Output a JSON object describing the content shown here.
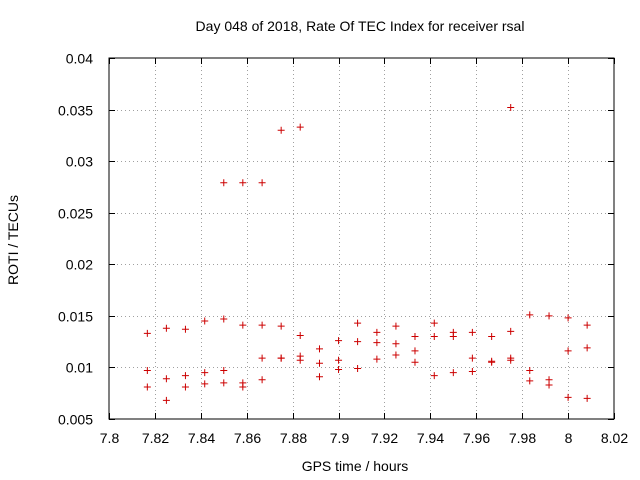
{
  "chart_data": {
    "type": "scatter",
    "title": "Day 048 of 2018, Rate Of TEC Index for receiver rsal",
    "xlabel": "GPS time / hours",
    "ylabel": "ROTI / TECUs",
    "xlim": [
      7.8,
      8.02
    ],
    "ylim": [
      0.005,
      0.04
    ],
    "grid": true,
    "marker": "+",
    "marker_color": "#cc0000",
    "xticks": [
      {
        "value": 7.8,
        "label": "7.8"
      },
      {
        "value": 7.82,
        "label": "7.82"
      },
      {
        "value": 7.84,
        "label": "7.84"
      },
      {
        "value": 7.86,
        "label": "7.86"
      },
      {
        "value": 7.88,
        "label": "7.88"
      },
      {
        "value": 7.9,
        "label": "7.9"
      },
      {
        "value": 7.92,
        "label": "7.92"
      },
      {
        "value": 7.94,
        "label": "7.94"
      },
      {
        "value": 7.96,
        "label": "7.96"
      },
      {
        "value": 7.98,
        "label": "7.98"
      },
      {
        "value": 8.0,
        "label": "8"
      },
      {
        "value": 8.02,
        "label": "8.02"
      }
    ],
    "yticks": [
      {
        "value": 0.005,
        "label": "0.005"
      },
      {
        "value": 0.01,
        "label": "0.01"
      },
      {
        "value": 0.015,
        "label": "0.015"
      },
      {
        "value": 0.02,
        "label": "0.02"
      },
      {
        "value": 0.025,
        "label": "0.025"
      },
      {
        "value": 0.03,
        "label": "0.03"
      },
      {
        "value": 0.035,
        "label": "0.035"
      },
      {
        "value": 0.04,
        "label": "0.04"
      }
    ],
    "points": [
      [
        7.8167,
        0.0133
      ],
      [
        7.8167,
        0.0097
      ],
      [
        7.8167,
        0.0081
      ],
      [
        7.825,
        0.0138
      ],
      [
        7.825,
        0.0089
      ],
      [
        7.825,
        0.0068
      ],
      [
        7.8333,
        0.0137
      ],
      [
        7.8333,
        0.0092
      ],
      [
        7.8333,
        0.0081
      ],
      [
        7.8417,
        0.0145
      ],
      [
        7.8417,
        0.0095
      ],
      [
        7.8417,
        0.0084
      ],
      [
        7.85,
        0.0279
      ],
      [
        7.85,
        0.0147
      ],
      [
        7.85,
        0.0097
      ],
      [
        7.85,
        0.0085
      ],
      [
        7.8583,
        0.0279
      ],
      [
        7.8583,
        0.0141
      ],
      [
        7.8583,
        0.0085
      ],
      [
        7.8583,
        0.0081
      ],
      [
        7.8667,
        0.0279
      ],
      [
        7.8667,
        0.0141
      ],
      [
        7.8667,
        0.0109
      ],
      [
        7.8667,
        0.0088
      ],
      [
        7.875,
        0.033
      ],
      [
        7.875,
        0.014
      ],
      [
        7.875,
        0.0109
      ],
      [
        7.875,
        0.0109
      ],
      [
        7.8833,
        0.0333
      ],
      [
        7.8833,
        0.0131
      ],
      [
        7.8833,
        0.0111
      ],
      [
        7.8833,
        0.0107
      ],
      [
        7.8917,
        0.0118
      ],
      [
        7.8917,
        0.0104
      ],
      [
        7.8917,
        0.0091
      ],
      [
        7.9,
        0.0126
      ],
      [
        7.9,
        0.0107
      ],
      [
        7.9,
        0.0098
      ],
      [
        7.9083,
        0.0143
      ],
      [
        7.9083,
        0.0125
      ],
      [
        7.9083,
        0.0099
      ],
      [
        7.9167,
        0.0134
      ],
      [
        7.9167,
        0.0124
      ],
      [
        7.9167,
        0.0108
      ],
      [
        7.925,
        0.014
      ],
      [
        7.925,
        0.0123
      ],
      [
        7.925,
        0.0112
      ],
      [
        7.9333,
        0.013
      ],
      [
        7.9333,
        0.0116
      ],
      [
        7.9333,
        0.0105
      ],
      [
        7.9417,
        0.0143
      ],
      [
        7.9417,
        0.013
      ],
      [
        7.9417,
        0.0092
      ],
      [
        7.95,
        0.0134
      ],
      [
        7.95,
        0.013
      ],
      [
        7.95,
        0.0095
      ],
      [
        7.9583,
        0.0134
      ],
      [
        7.9583,
        0.0109
      ],
      [
        7.9583,
        0.0096
      ],
      [
        7.9667,
        0.013
      ],
      [
        7.9667,
        0.0106
      ],
      [
        7.9667,
        0.0105
      ],
      [
        7.975,
        0.0352
      ],
      [
        7.975,
        0.0135
      ],
      [
        7.975,
        0.0109
      ],
      [
        7.975,
        0.0107
      ],
      [
        7.9833,
        0.0151
      ],
      [
        7.9833,
        0.0097
      ],
      [
        7.9833,
        0.0087
      ],
      [
        7.9917,
        0.015
      ],
      [
        7.9917,
        0.0088
      ],
      [
        7.9917,
        0.0083
      ],
      [
        8.0,
        0.0148
      ],
      [
        8.0,
        0.0116
      ],
      [
        8.0,
        0.0071
      ],
      [
        8.0083,
        0.0141
      ],
      [
        8.0083,
        0.0119
      ],
      [
        8.0083,
        0.007
      ]
    ]
  }
}
